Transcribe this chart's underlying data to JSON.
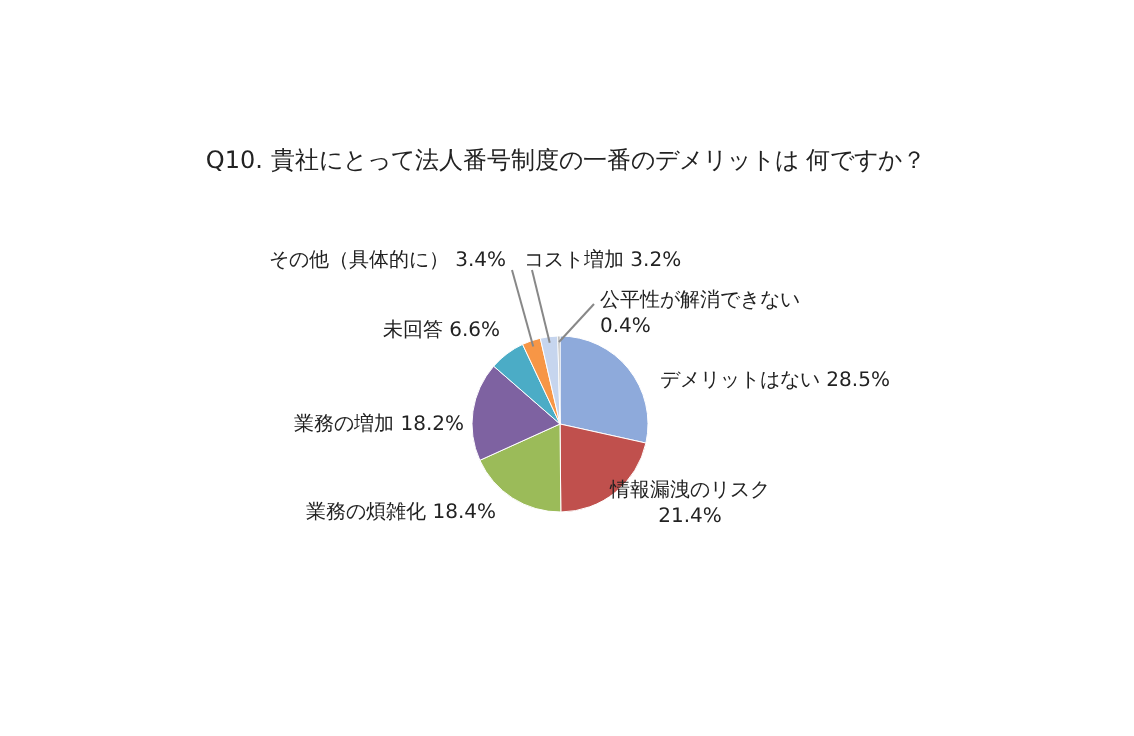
{
  "chart_data": {
    "type": "pie",
    "title": "Q10. 貴社にとって法人番号制度の一番のデメリットは 何ですか？",
    "categories": [
      "デメリットはない",
      "情報漏洩のリスク",
      "業務の煩雑化",
      "業務の増加",
      "未回答",
      "その他（具体的に）",
      "コスト増加",
      "公平性が解消できない"
    ],
    "values": [
      28.5,
      21.4,
      18.4,
      18.2,
      6.6,
      3.4,
      3.2,
      0.4
    ],
    "value_labels": [
      "28.5%",
      "21.4%",
      "18.4%",
      "18.2%",
      "6.6%",
      "3.4%",
      "3.2%",
      "0.4%"
    ],
    "colors": [
      "#8eaadb",
      "#c0504d",
      "#9bbb59",
      "#7e62a1",
      "#4bacc6",
      "#f79646",
      "#c6d5ee",
      "#a5a5a5"
    ]
  }
}
